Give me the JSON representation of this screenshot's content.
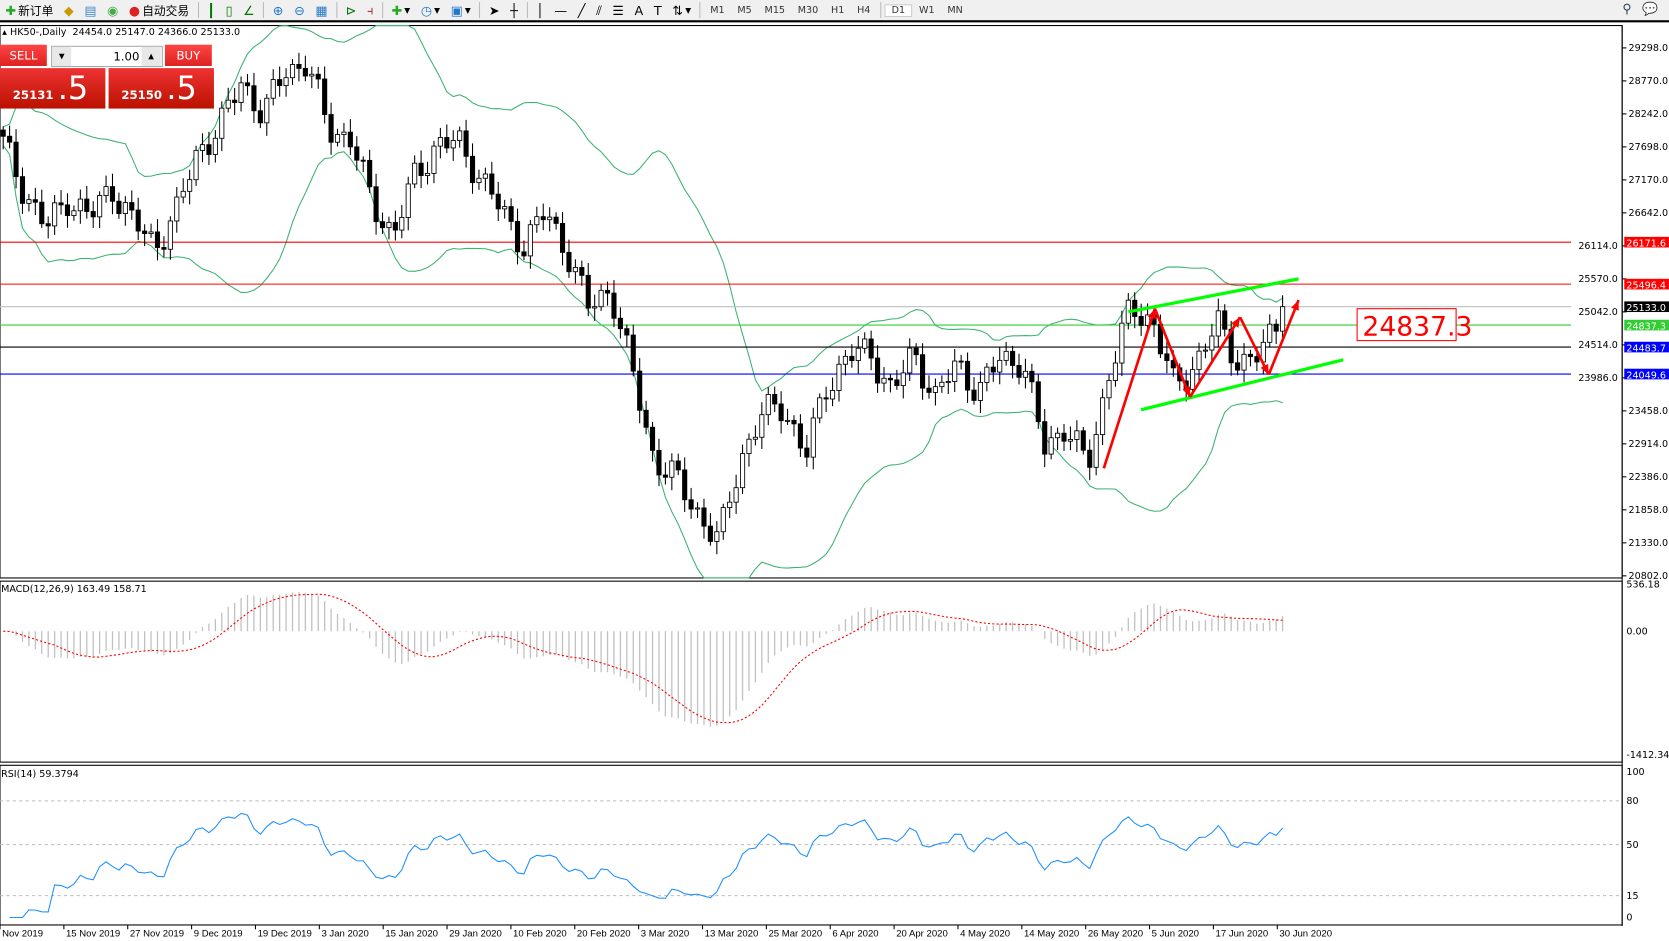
{
  "toolbar": {
    "new_order": "新订单",
    "auto_trading": "自动交易",
    "timeframes": [
      "M1",
      "M5",
      "M15",
      "M30",
      "H1",
      "H4",
      "D1",
      "W1",
      "MN"
    ],
    "icons": [
      "new-order-icon",
      "market-watch-icon",
      "data-window-icon",
      "signals-icon",
      "auto-trading-icon",
      "bar-chart-icon",
      "candlestick-icon",
      "line-chart-icon",
      "zoom-in-icon",
      "zoom-out-icon",
      "tile-windows-icon",
      "auto-scroll-icon",
      "chart-shift-icon",
      "indicators-icon",
      "periods-icon",
      "templates-icon",
      "cursor-icon",
      "crosshair-icon",
      "vertical-line-icon",
      "horizontal-line-icon",
      "trendline-icon",
      "equidistant-channel-icon",
      "fibonacci-icon",
      "text-icon",
      "text-label-icon",
      "arrows-icon"
    ]
  },
  "chart": {
    "title": "HK50-,Daily",
    "ohlc": "24454.0 25147.0 24366.0 25133.0",
    "annotation": "24837.3",
    "price_ticks": [
      "29298.0",
      "28770.0",
      "28242.0",
      "27698.0",
      "27170.0",
      "26642.0",
      "26114.0",
      "25570.0",
      "25042.0",
      "24514.0",
      "23986.0",
      "23458.0",
      "22914.0",
      "22386.0",
      "21858.0",
      "21330.0",
      "20802.0"
    ],
    "levels": [
      {
        "value": "26171.6",
        "color": "#ff0000",
        "label_color": "#ff0000"
      },
      {
        "value": "25496.4",
        "color": "#ff0000",
        "label_color": "#ff0000"
      },
      {
        "value": "25133.0",
        "color": "#c0c0c0",
        "label_color": "#000000"
      },
      {
        "value": "24837.3",
        "color": "#32cd32",
        "label_color": "#32cd32"
      },
      {
        "value": "24483.7",
        "color": "#000000",
        "label_color": "#0000ff"
      },
      {
        "value": "24049.6",
        "color": "#0000ff",
        "label_color": "#0000ff"
      }
    ],
    "approx_closes": [
      27756,
      26986,
      26386,
      26900,
      26557,
      27070,
      26472,
      26130,
      26643,
      27670,
      28013,
      28784,
      28185,
      28955,
      29041,
      28013,
      27842,
      26814,
      26300,
      27242,
      27756,
      27756,
      27242,
      26643,
      26130,
      26643,
      26044,
      25100,
      25440,
      24073,
      22703,
      22360,
      21846,
      21332,
      22703,
      23388,
      23559,
      22703,
      23902,
      24330,
      24416,
      23731,
      24416,
      23645,
      24245,
      23731,
      24330,
      24245,
      22874,
      23217,
      22532,
      24073,
      25100,
      24930,
      23816,
      24245,
      24844,
      24245,
      24330,
      25133
    ],
    "dates": [
      "Nov 2019",
      "15 Nov 2019",
      "27 Nov 2019",
      "9 Dec 2019",
      "19 Dec 2019",
      "3 Jan 2020",
      "15 Jan 2020",
      "29 Jan 2020",
      "10 Feb 2020",
      "20 Feb 2020",
      "3 Mar 2020",
      "13 Mar 2020",
      "25 Mar 2020",
      "6 Apr 2020",
      "20 Apr 2020",
      "4 May 2020",
      "14 May 2020",
      "26 May 2020",
      "5 Jun 2020",
      "17 Jun 2020",
      "30 Jun 2020"
    ],
    "colors": {
      "bands": "#3cb371",
      "trend_channel": "#00ff00",
      "arrows": "#ff0000",
      "rsi": "#1e90ff",
      "macd_signal": "#ff0000",
      "macd_hist": "#c0c0c0"
    }
  },
  "trade_panel": {
    "sell_label": "SELL",
    "buy_label": "BUY",
    "lot": "1.00",
    "sell_main": "25131",
    "sell_pip": ".5",
    "buy_main": "25150",
    "buy_pip": ".5"
  },
  "macd": {
    "label": "MACD(12,26,9) 163.49 158.71",
    "ticks": [
      "536.18",
      "0.00",
      "-1412.34"
    ]
  },
  "rsi": {
    "label": "RSI(14) 59.3794",
    "ticks": [
      "100",
      "80",
      "50",
      "15",
      "0"
    ]
  }
}
